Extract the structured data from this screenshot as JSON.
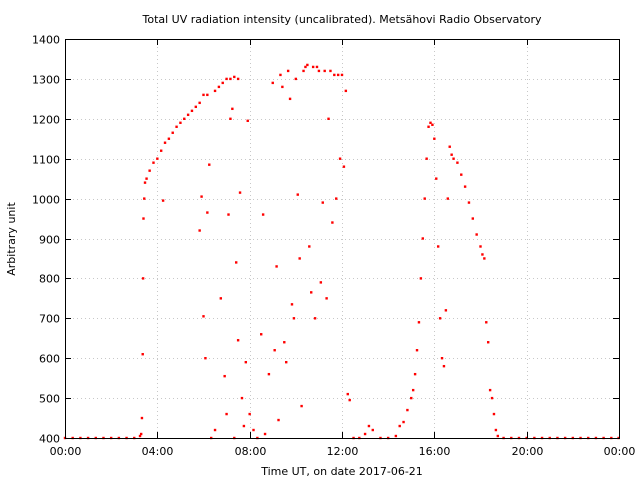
{
  "chart_data": {
    "type": "scatter",
    "title": "Total UV radiation intensity (uncalibrated). Metsähovi Radio Observatory",
    "xlabel": "Time UT, on date 2017-06-21",
    "ylabel": "Arbitrary unit",
    "xlim": [
      "00:00",
      "24:00"
    ],
    "ylim": [
      400,
      1400
    ],
    "x_ticks": [
      "00:00",
      "04:00",
      "08:00",
      "12:00",
      "16:00",
      "20:00",
      "00:00"
    ],
    "y_ticks": [
      400,
      500,
      600,
      700,
      800,
      900,
      1000,
      1100,
      1200,
      1300,
      1400
    ],
    "grid": true,
    "legend": "none",
    "point_color": "#ff0000",
    "series": [
      {
        "points": [
          [
            "00:00",
            400
          ],
          [
            "00:20",
            400
          ],
          [
            "00:40",
            400
          ],
          [
            "01:00",
            400
          ],
          [
            "01:20",
            400
          ],
          [
            "01:40",
            400
          ],
          [
            "02:00",
            400
          ],
          [
            "02:20",
            400
          ],
          [
            "02:40",
            400
          ],
          [
            "03:00",
            400
          ],
          [
            "03:15",
            405
          ],
          [
            "03:18",
            410
          ],
          [
            "03:20",
            450
          ],
          [
            "03:22",
            610
          ],
          [
            "03:23",
            800
          ],
          [
            "03:24",
            950
          ],
          [
            "03:26",
            1000
          ],
          [
            "03:28",
            1040
          ],
          [
            "03:32",
            1050
          ],
          [
            "03:40",
            1070
          ],
          [
            "03:50",
            1090
          ],
          [
            "04:00",
            1100
          ],
          [
            "04:10",
            1120
          ],
          [
            "04:20",
            1140
          ],
          [
            "04:30",
            1150
          ],
          [
            "04:40",
            1165
          ],
          [
            "04:50",
            1180
          ],
          [
            "05:00",
            1190
          ],
          [
            "05:10",
            1200
          ],
          [
            "05:20",
            1210
          ],
          [
            "05:30",
            1220
          ],
          [
            "05:40",
            1230
          ],
          [
            "05:50",
            1240
          ],
          [
            "06:00",
            1260
          ],
          [
            "06:10",
            1260
          ],
          [
            "06:30",
            1270
          ],
          [
            "06:40",
            1280
          ],
          [
            "06:50",
            1290
          ],
          [
            "07:00",
            1300
          ],
          [
            "07:10",
            1300
          ],
          [
            "07:20",
            1305
          ],
          [
            "07:30",
            1300
          ],
          [
            "04:15",
            995
          ],
          [
            "05:50",
            920
          ],
          [
            "05:55",
            1005
          ],
          [
            "06:00",
            705
          ],
          [
            "06:05",
            600
          ],
          [
            "06:10",
            965
          ],
          [
            "06:15",
            1085
          ],
          [
            "06:20",
            400
          ],
          [
            "06:30",
            420
          ],
          [
            "06:45",
            750
          ],
          [
            "06:55",
            555
          ],
          [
            "07:00",
            460
          ],
          [
            "07:05",
            960
          ],
          [
            "07:10",
            1200
          ],
          [
            "07:15",
            1225
          ],
          [
            "07:20",
            400
          ],
          [
            "07:25",
            840
          ],
          [
            "07:30",
            645
          ],
          [
            "07:35",
            1015
          ],
          [
            "07:40",
            500
          ],
          [
            "07:45",
            430
          ],
          [
            "07:50",
            590
          ],
          [
            "07:55",
            1195
          ],
          [
            "08:00",
            460
          ],
          [
            "08:10",
            420
          ],
          [
            "08:20",
            400
          ],
          [
            "08:30",
            660
          ],
          [
            "08:35",
            960
          ],
          [
            "08:40",
            410
          ],
          [
            "08:50",
            560
          ],
          [
            "09:00",
            1290
          ],
          [
            "09:05",
            620
          ],
          [
            "09:10",
            830
          ],
          [
            "09:15",
            445
          ],
          [
            "09:20",
            1310
          ],
          [
            "09:25",
            1280
          ],
          [
            "09:30",
            640
          ],
          [
            "09:35",
            590
          ],
          [
            "09:40",
            1320
          ],
          [
            "09:45",
            1250
          ],
          [
            "09:50",
            735
          ],
          [
            "09:55",
            700
          ],
          [
            "10:00",
            1300
          ],
          [
            "10:05",
            1010
          ],
          [
            "10:10",
            850
          ],
          [
            "10:15",
            480
          ],
          [
            "10:20",
            1320
          ],
          [
            "10:25",
            1330
          ],
          [
            "10:30",
            1335
          ],
          [
            "10:35",
            880
          ],
          [
            "10:40",
            765
          ],
          [
            "10:45",
            1330
          ],
          [
            "10:50",
            700
          ],
          [
            "10:55",
            1330
          ],
          [
            "11:00",
            1320
          ],
          [
            "11:05",
            790
          ],
          [
            "11:10",
            990
          ],
          [
            "11:15",
            1320
          ],
          [
            "11:20",
            750
          ],
          [
            "11:25",
            1200
          ],
          [
            "11:30",
            1320
          ],
          [
            "11:35",
            940
          ],
          [
            "11:40",
            1310
          ],
          [
            "11:45",
            1000
          ],
          [
            "11:50",
            1310
          ],
          [
            "11:55",
            1100
          ],
          [
            "12:00",
            1310
          ],
          [
            "12:05",
            1080
          ],
          [
            "12:10",
            1270
          ],
          [
            "12:15",
            510
          ],
          [
            "12:20",
            495
          ],
          [
            "12:30",
            400
          ],
          [
            "12:45",
            400
          ],
          [
            "13:00",
            410
          ],
          [
            "13:10",
            430
          ],
          [
            "13:20",
            420
          ],
          [
            "13:40",
            400
          ],
          [
            "14:00",
            400
          ],
          [
            "14:20",
            405
          ],
          [
            "14:30",
            430
          ],
          [
            "14:40",
            440
          ],
          [
            "14:50",
            470
          ],
          [
            "15:00",
            500
          ],
          [
            "15:05",
            520
          ],
          [
            "15:10",
            560
          ],
          [
            "15:15",
            620
          ],
          [
            "15:20",
            690
          ],
          [
            "15:25",
            800
          ],
          [
            "15:30",
            900
          ],
          [
            "15:35",
            1000
          ],
          [
            "15:40",
            1100
          ],
          [
            "15:45",
            1180
          ],
          [
            "15:50",
            1190
          ],
          [
            "15:55",
            1185
          ],
          [
            "16:00",
            1150
          ],
          [
            "16:05",
            1050
          ],
          [
            "16:10",
            880
          ],
          [
            "16:15",
            700
          ],
          [
            "16:20",
            600
          ],
          [
            "16:25",
            580
          ],
          [
            "16:30",
            720
          ],
          [
            "16:35",
            1000
          ],
          [
            "16:40",
            1130
          ],
          [
            "16:45",
            1110
          ],
          [
            "16:50",
            1100
          ],
          [
            "17:00",
            1090
          ],
          [
            "17:10",
            1060
          ],
          [
            "17:20",
            1030
          ],
          [
            "17:30",
            990
          ],
          [
            "17:40",
            950
          ],
          [
            "17:50",
            910
          ],
          [
            "18:00",
            880
          ],
          [
            "18:05",
            860
          ],
          [
            "18:10",
            850
          ],
          [
            "18:15",
            690
          ],
          [
            "18:20",
            640
          ],
          [
            "18:25",
            520
          ],
          [
            "18:30",
            500
          ],
          [
            "18:35",
            460
          ],
          [
            "18:40",
            420
          ],
          [
            "18:45",
            405
          ],
          [
            "19:00",
            400
          ],
          [
            "19:20",
            400
          ],
          [
            "19:40",
            400
          ],
          [
            "20:00",
            400
          ],
          [
            "20:20",
            400
          ],
          [
            "20:40",
            400
          ],
          [
            "21:00",
            400
          ],
          [
            "21:20",
            400
          ],
          [
            "21:40",
            400
          ],
          [
            "22:00",
            400
          ],
          [
            "22:20",
            400
          ],
          [
            "22:40",
            400
          ],
          [
            "23:00",
            400
          ],
          [
            "23:20",
            400
          ],
          [
            "23:40",
            400
          ],
          [
            "23:59",
            400
          ]
        ]
      }
    ]
  }
}
